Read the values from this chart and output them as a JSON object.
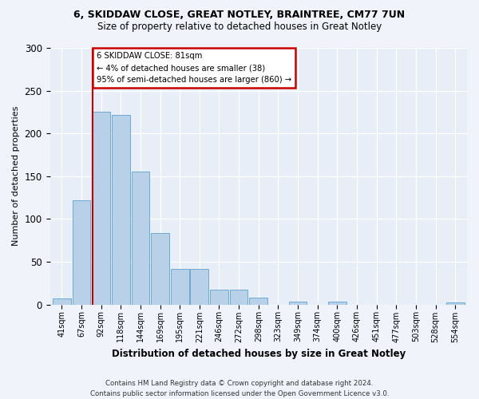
{
  "title1": "6, SKIDDAW CLOSE, GREAT NOTLEY, BRAINTREE, CM77 7UN",
  "title2": "Size of property relative to detached houses in Great Notley",
  "xlabel": "Distribution of detached houses by size in Great Notley",
  "ylabel": "Number of detached properties",
  "categories": [
    "41sqm",
    "67sqm",
    "92sqm",
    "118sqm",
    "144sqm",
    "169sqm",
    "195sqm",
    "221sqm",
    "246sqm",
    "272sqm",
    "298sqm",
    "323sqm",
    "349sqm",
    "374sqm",
    "400sqm",
    "426sqm",
    "451sqm",
    "477sqm",
    "503sqm",
    "528sqm",
    "554sqm"
  ],
  "values": [
    7,
    122,
    225,
    222,
    155,
    84,
    42,
    42,
    17,
    17,
    8,
    0,
    3,
    0,
    3,
    0,
    0,
    0,
    0,
    0,
    2
  ],
  "bar_color": "#b8d0e8",
  "bar_edge_color": "#6aaad4",
  "annotation_text": "6 SKIDDAW CLOSE: 81sqm\n← 4% of detached houses are smaller (38)\n95% of semi-detached houses are larger (860) →",
  "annotation_box_color": "#ffffff",
  "annotation_box_edge_color": "#cc0000",
  "vline_color": "#cc0000",
  "ylim": [
    0,
    300
  ],
  "yticks": [
    0,
    50,
    100,
    150,
    200,
    250,
    300
  ],
  "footer": "Contains HM Land Registry data © Crown copyright and database right 2024.\nContains public sector information licensed under the Open Government Licence v3.0.",
  "background_color": "#f0f4fa",
  "plot_bg_color": "#e8eef8"
}
